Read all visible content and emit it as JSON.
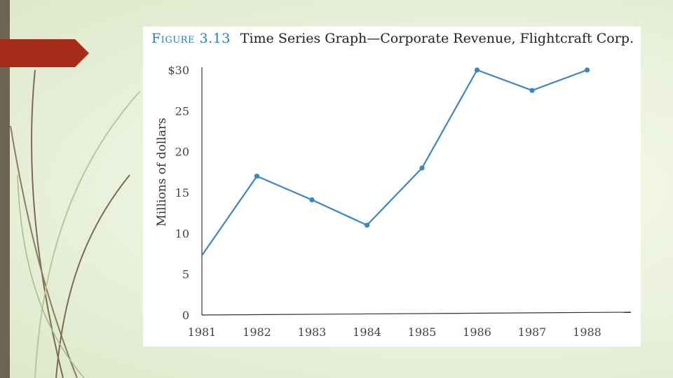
{
  "figure": {
    "label": "Figure 3.13",
    "caption": "Time Series Graph—Corporate Revenue, Flightcraft Corp."
  },
  "colors": {
    "line": "#3a86c4",
    "accent_tab": "#a82c1c",
    "left_bar": "#6b6450"
  },
  "chart_data": {
    "type": "line",
    "title": "Time Series Graph—Corporate Revenue, Flightcraft Corp.",
    "xlabel": "",
    "ylabel": "Millions of dollars",
    "categories": [
      "1981",
      "1982",
      "1983",
      "1984",
      "1985",
      "1986",
      "1987",
      "1988"
    ],
    "series": [
      {
        "name": "Corporate Revenue",
        "values": [
          7.3,
          17,
          14.1,
          11,
          18,
          30,
          27.5,
          30
        ]
      }
    ],
    "ylim": [
      0,
      30
    ],
    "yticks": [
      0,
      5,
      10,
      15,
      20,
      25,
      30
    ],
    "ytick_labels": [
      "0",
      "5",
      "10",
      "15",
      "20",
      "25",
      "$30"
    ],
    "grid": false
  }
}
